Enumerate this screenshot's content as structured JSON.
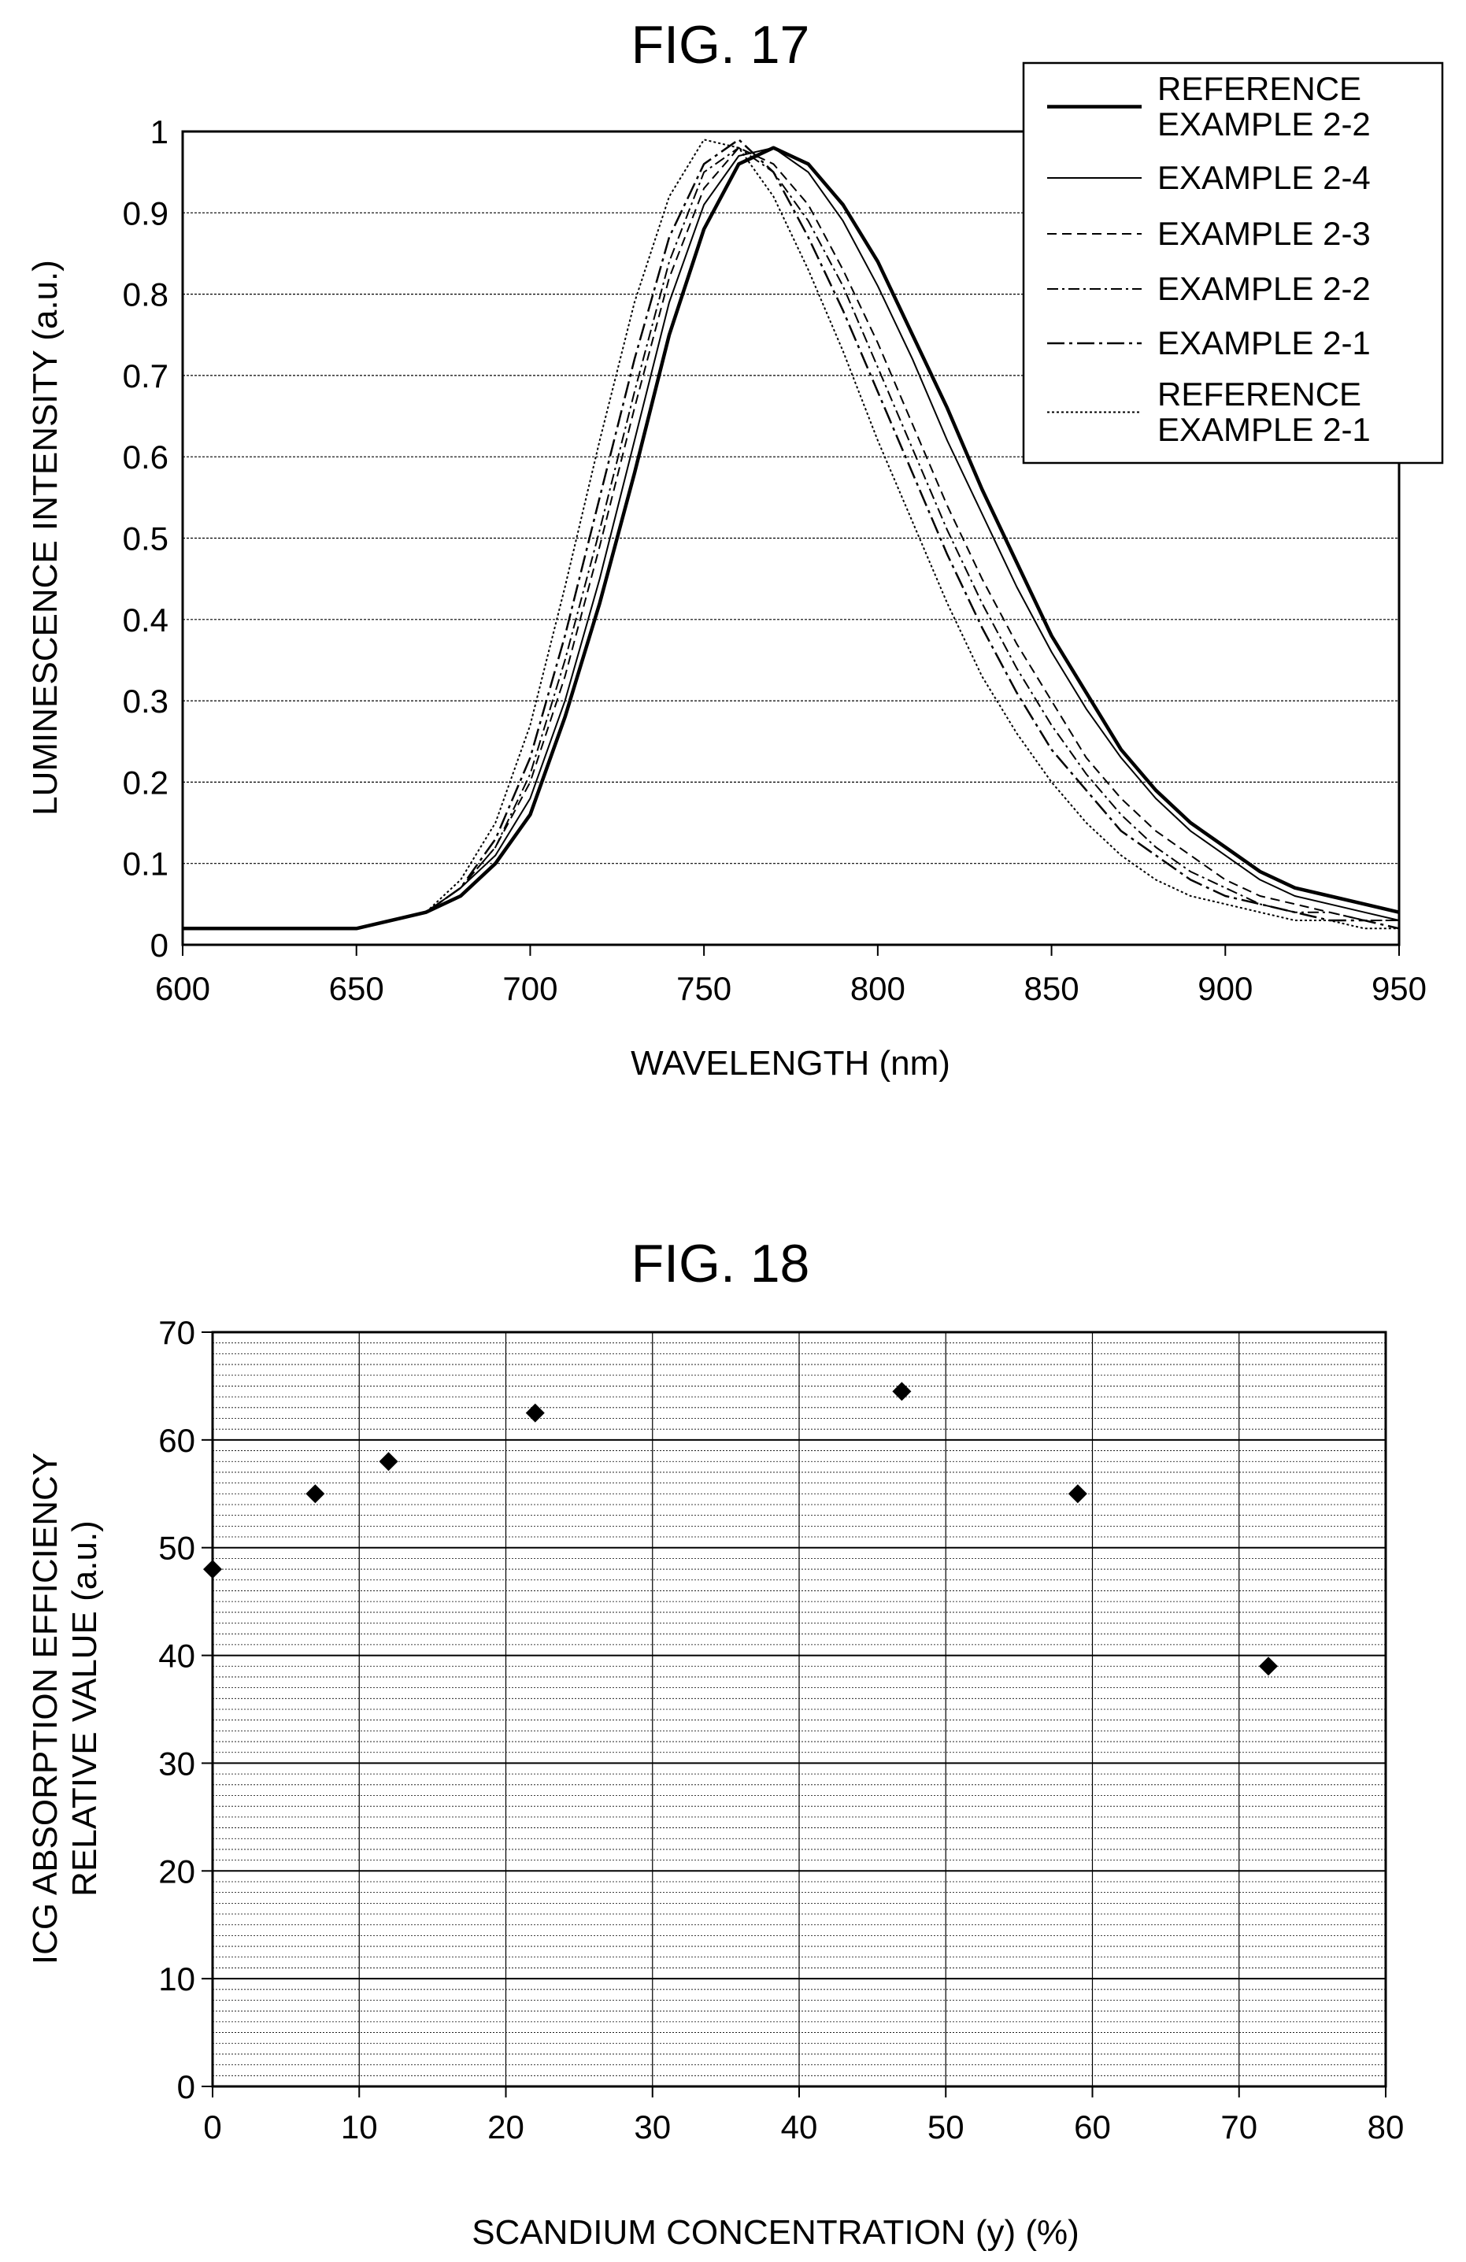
{
  "chart_data": [
    {
      "type": "line",
      "title": "FIG. 17",
      "xlabel": "WAVELENGTH (nm)",
      "ylabel": "LUMINESCENCE INTENSITY (a.u.)",
      "xlim": [
        600,
        950
      ],
      "ylim": [
        0,
        1
      ],
      "xticks": [
        600,
        650,
        700,
        750,
        800,
        850,
        900,
        950
      ],
      "yticks": [
        0,
        0.1,
        0.2,
        0.3,
        0.4,
        0.5,
        0.6,
        0.7,
        0.8,
        0.9,
        1
      ],
      "grid": "horizontal",
      "legend_position": "top-right",
      "x": [
        600,
        650,
        670,
        680,
        690,
        700,
        710,
        720,
        730,
        740,
        750,
        760,
        770,
        780,
        790,
        800,
        810,
        820,
        830,
        840,
        850,
        860,
        870,
        880,
        890,
        900,
        910,
        920,
        930,
        940,
        950
      ],
      "series": [
        {
          "name": "REFERENCE EXAMPLE 2-2",
          "style": "solid-thick",
          "values": [
            0.02,
            0.02,
            0.04,
            0.06,
            0.1,
            0.16,
            0.28,
            0.42,
            0.58,
            0.75,
            0.88,
            0.96,
            0.98,
            0.96,
            0.91,
            0.84,
            0.75,
            0.66,
            0.56,
            0.47,
            0.38,
            0.31,
            0.24,
            0.19,
            0.15,
            0.12,
            0.09,
            0.07,
            0.06,
            0.05,
            0.04
          ]
        },
        {
          "name": "EXAMPLE 2-4",
          "style": "solid-thin",
          "values": [
            0.02,
            0.02,
            0.04,
            0.07,
            0.11,
            0.18,
            0.3,
            0.45,
            0.62,
            0.79,
            0.91,
            0.97,
            0.98,
            0.95,
            0.89,
            0.81,
            0.72,
            0.62,
            0.53,
            0.44,
            0.36,
            0.29,
            0.23,
            0.18,
            0.14,
            0.11,
            0.08,
            0.06,
            0.05,
            0.04,
            0.03
          ]
        },
        {
          "name": "EXAMPLE 2-3",
          "style": "dashed",
          "values": [
            0.02,
            0.02,
            0.04,
            0.07,
            0.12,
            0.2,
            0.33,
            0.49,
            0.66,
            0.82,
            0.93,
            0.98,
            0.96,
            0.91,
            0.83,
            0.74,
            0.64,
            0.54,
            0.45,
            0.37,
            0.3,
            0.23,
            0.18,
            0.14,
            0.11,
            0.08,
            0.06,
            0.05,
            0.04,
            0.03,
            0.03
          ]
        },
        {
          "name": "EXAMPLE 2-2",
          "style": "dash-dot",
          "values": [
            0.02,
            0.02,
            0.04,
            0.07,
            0.12,
            0.21,
            0.35,
            0.51,
            0.68,
            0.84,
            0.95,
            0.98,
            0.95,
            0.89,
            0.81,
            0.71,
            0.61,
            0.51,
            0.42,
            0.34,
            0.27,
            0.21,
            0.16,
            0.12,
            0.09,
            0.07,
            0.05,
            0.04,
            0.04,
            0.03,
            0.03
          ]
        },
        {
          "name": "EXAMPLE 2-1",
          "style": "dash-dot-long",
          "values": [
            0.02,
            0.02,
            0.04,
            0.07,
            0.13,
            0.23,
            0.38,
            0.55,
            0.72,
            0.87,
            0.96,
            0.99,
            0.95,
            0.87,
            0.78,
            0.68,
            0.58,
            0.48,
            0.39,
            0.31,
            0.24,
            0.19,
            0.14,
            0.11,
            0.08,
            0.06,
            0.05,
            0.04,
            0.03,
            0.03,
            0.02
          ]
        },
        {
          "name": "REFERENCE EXAMPLE 2-1",
          "style": "dotted",
          "values": [
            0.02,
            0.02,
            0.04,
            0.08,
            0.15,
            0.27,
            0.44,
            0.62,
            0.79,
            0.92,
            0.99,
            0.98,
            0.92,
            0.83,
            0.73,
            0.62,
            0.52,
            0.42,
            0.33,
            0.26,
            0.2,
            0.15,
            0.11,
            0.08,
            0.06,
            0.05,
            0.04,
            0.03,
            0.03,
            0.02,
            0.02
          ]
        }
      ],
      "legend_labels": [
        [
          "REFERENCE",
          "EXAMPLE 2-2"
        ],
        [
          "EXAMPLE 2-4"
        ],
        [
          "EXAMPLE 2-3"
        ],
        [
          "EXAMPLE 2-2"
        ],
        [
          "EXAMPLE 2-1"
        ],
        [
          "REFERENCE",
          "EXAMPLE 2-1"
        ]
      ]
    },
    {
      "type": "scatter",
      "title": "FIG. 18",
      "xlabel": "SCANDIUM CONCENTRATION (y) (%)",
      "ylabel_lines": [
        "ICG ABSORPTION EFFICIENCY",
        "RELATIVE VALUE (a.u.)"
      ],
      "xlim": [
        0,
        80
      ],
      "ylim": [
        0,
        70
      ],
      "xticks": [
        0,
        10,
        20,
        30,
        40,
        50,
        60,
        70,
        80
      ],
      "yticks": [
        0,
        10,
        20,
        30,
        40,
        50,
        60,
        70
      ],
      "grid": "major and minor",
      "marker": "diamond",
      "x": [
        0,
        7,
        12,
        22,
        47,
        59,
        72
      ],
      "y": [
        48,
        55,
        58,
        62.5,
        64.5,
        55,
        39
      ]
    }
  ]
}
